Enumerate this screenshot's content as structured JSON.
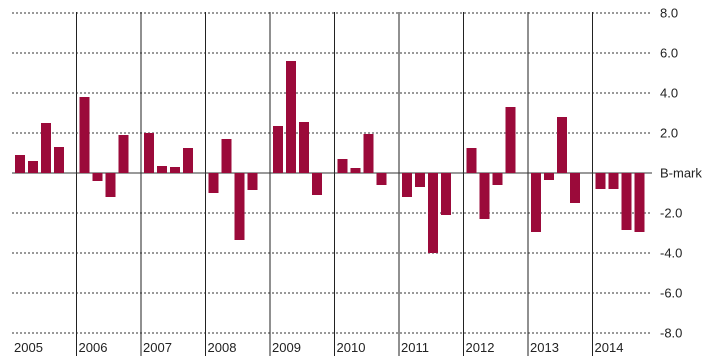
{
  "colors": {
    "bar": "#9b0a3a",
    "grid": "#333333",
    "separator": "#222222",
    "text": "#222222"
  },
  "chart_data": {
    "type": "bar",
    "title": "",
    "xlabel": "",
    "ylabel": "",
    "ylim": [
      -8,
      8
    ],
    "grid": "horizontal dashed",
    "y_ticks": [
      {
        "value": 8,
        "label": "8.0"
      },
      {
        "value": 6,
        "label": "6.0"
      },
      {
        "value": 4,
        "label": "4.0"
      },
      {
        "value": 2,
        "label": "2.0"
      },
      {
        "value": 0,
        "label": "B-mark"
      },
      {
        "value": -2,
        "label": "-2.0"
      },
      {
        "value": -4,
        "label": "-4.0"
      },
      {
        "value": -6,
        "label": "-6.0"
      },
      {
        "value": -8,
        "label": "-8.0"
      }
    ],
    "groups": [
      {
        "label": "2005",
        "values": [
          0.9,
          0.6,
          2.5,
          1.3
        ]
      },
      {
        "label": "2006",
        "values": [
          3.8,
          -0.4,
          -1.2,
          1.9
        ]
      },
      {
        "label": "2007",
        "values": [
          2.0,
          0.35,
          0.3,
          1.25
        ]
      },
      {
        "label": "2008",
        "values": [
          -1.0,
          1.7,
          -3.35,
          -0.85
        ]
      },
      {
        "label": "2009",
        "values": [
          2.35,
          5.6,
          2.55,
          -1.1
        ]
      },
      {
        "label": "2010",
        "values": [
          0.7,
          0.25,
          1.95,
          -0.6
        ]
      },
      {
        "label": "2011",
        "values": [
          -1.2,
          -0.7,
          -4.0,
          -2.1
        ]
      },
      {
        "label": "2012",
        "values": [
          1.25,
          -2.3,
          -0.6,
          3.3
        ]
      },
      {
        "label": "2013",
        "values": [
          -2.95,
          -0.35,
          2.8,
          -1.5
        ]
      },
      {
        "label": "2014",
        "values": [
          -0.8,
          -0.8,
          -2.85,
          -2.95
        ]
      }
    ]
  }
}
